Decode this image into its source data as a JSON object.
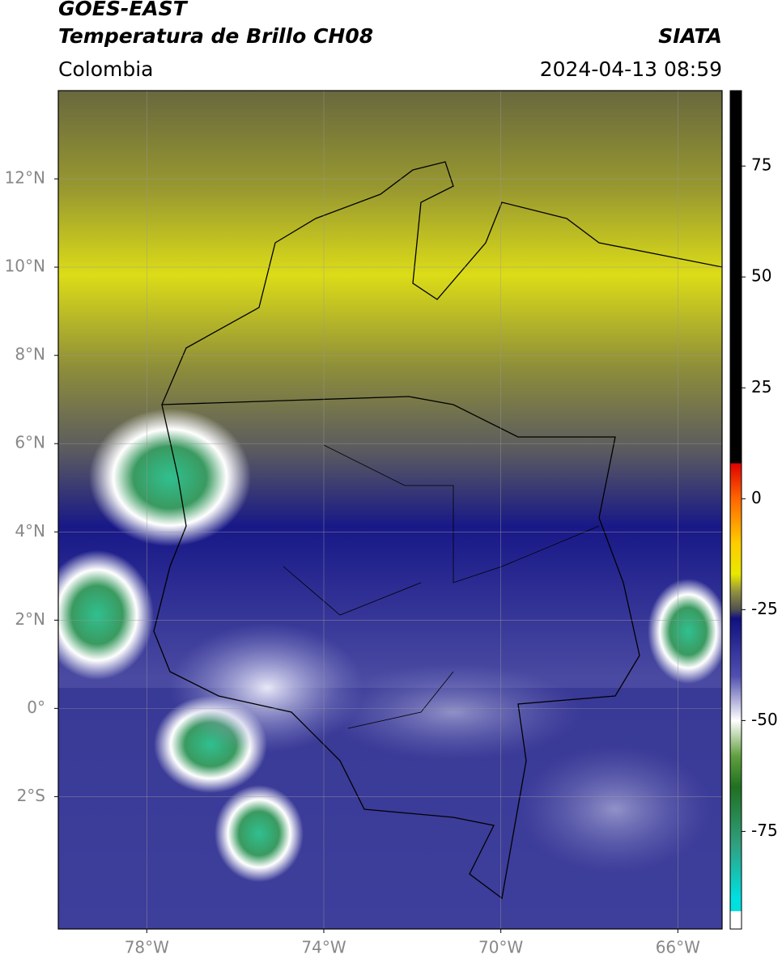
{
  "header": {
    "title": "GOES-EAST",
    "subtitle": "Temperatura de Brillo CH08",
    "source": "SIATA",
    "region": "Colombia",
    "datetime": "2024-04-13 08:59"
  },
  "map": {
    "xlim": [
      -80,
      -65
    ],
    "ylim": [
      -5,
      14
    ],
    "grid": true,
    "xticks": [
      {
        "value": -78,
        "label": "78°W"
      },
      {
        "value": -74,
        "label": "74°W"
      },
      {
        "value": -70,
        "label": "70°W"
      },
      {
        "value": -66,
        "label": "66°W"
      }
    ],
    "yticks": [
      {
        "value": 12,
        "label": "12°N"
      },
      {
        "value": 10,
        "label": "10°N"
      },
      {
        "value": 8,
        "label": "8°N"
      },
      {
        "value": 6,
        "label": "6°N"
      },
      {
        "value": 4,
        "label": "4°N"
      },
      {
        "value": 2,
        "label": "2°N"
      },
      {
        "value": 0,
        "label": "0°"
      },
      {
        "value": -2,
        "label": "2°S"
      }
    ]
  },
  "colorbar": {
    "lim": [
      -97,
      92
    ],
    "ticks": [
      75,
      50,
      25,
      0,
      -25,
      -50,
      -75
    ],
    "stops": [
      {
        "value": 92,
        "color": "#000000"
      },
      {
        "value": 8,
        "color": "#000000"
      },
      {
        "value": 8,
        "color": "#e00000"
      },
      {
        "value": 0,
        "color": "#ff6600"
      },
      {
        "value": -10,
        "color": "#ffcc00"
      },
      {
        "value": -17,
        "color": "#e8e800"
      },
      {
        "value": -21,
        "color": "#909040"
      },
      {
        "value": -25,
        "color": "#505050"
      },
      {
        "value": -27,
        "color": "#101080"
      },
      {
        "value": -40,
        "color": "#5050b0"
      },
      {
        "value": -50,
        "color": "#ffffff"
      },
      {
        "value": -58,
        "color": "#60a040"
      },
      {
        "value": -65,
        "color": "#207020"
      },
      {
        "value": -78,
        "color": "#30a080"
      },
      {
        "value": -90,
        "color": "#00e0e0"
      },
      {
        "value": -93,
        "color": "#00e0e0"
      },
      {
        "value": -93,
        "color": "#ffffff"
      },
      {
        "value": -97,
        "color": "#ffffff"
      }
    ]
  }
}
